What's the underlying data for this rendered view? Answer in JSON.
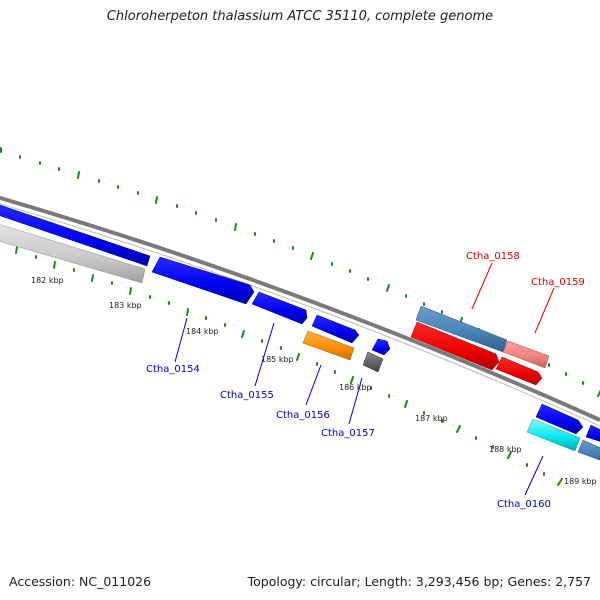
{
  "title": "Chloroherpeton thalassium ATCC 35110, complete genome",
  "footer": {
    "accession": "Accession: NC_011026",
    "topology": "Topology: circular; Length: 3,293,456 bp; Genes: 2,757"
  },
  "colors": {
    "backbone": "#808080",
    "tick_green": "#1a8a1a",
    "label_blue": "#0000cc",
    "label_red": "#dd0000",
    "gene_blue": "#0000ee",
    "gene_red": "#ee0000",
    "gene_steelblue": "#4682b4",
    "gene_lightred": "#f08080",
    "gene_orange": "#ff8c00",
    "gene_gray": "#606060",
    "gene_lightgray": "#c8c8c8",
    "gene_cyan": "#00e5ee"
  },
  "scale_labels": [
    "182 kbp",
    "183 kbp",
    "184 kbp",
    "185 kbp",
    "186 kbp",
    "187 kbp",
    "188 kbp",
    "189 kbp"
  ],
  "gene_labels": [
    {
      "text": "Ctha_0154",
      "color": "blue"
    },
    {
      "text": "Ctha_0155",
      "color": "blue"
    },
    {
      "text": "Ctha_0156",
      "color": "blue"
    },
    {
      "text": "Ctha_0157",
      "color": "blue"
    },
    {
      "text": "Ctha_0158",
      "color": "red"
    },
    {
      "text": "Ctha_0159",
      "color": "red"
    },
    {
      "text": "Ctha_0160",
      "color": "blue"
    }
  ]
}
